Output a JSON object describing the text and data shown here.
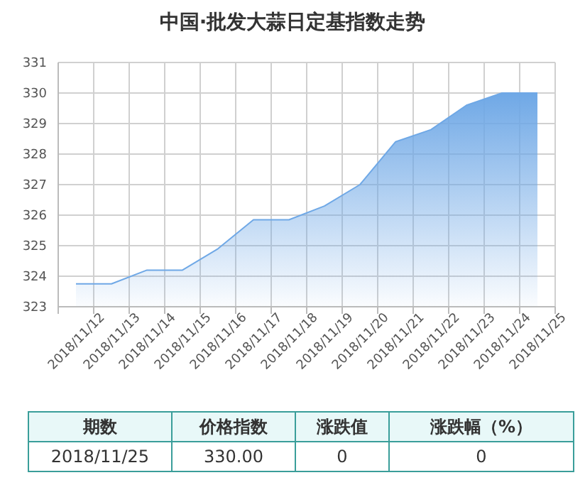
{
  "chart_data": {
    "type": "area",
    "title": "中国·批发大蒜日定基指数走势",
    "categories": [
      "2018/11/12",
      "2018/11/13",
      "2018/11/14",
      "2018/11/15",
      "2018/11/16",
      "2018/11/17",
      "2018/11/18",
      "2018/11/19",
      "2018/11/20",
      "2018/11/21",
      "2018/11/22",
      "2018/11/23",
      "2018/11/24",
      "2018/11/25"
    ],
    "series": [
      {
        "color": "#6fa8e6",
        "values": [
          323.75,
          323.75,
          324.2,
          324.2,
          324.9,
          325.85,
          325.85,
          326.3,
          327.0,
          328.4,
          328.8,
          329.6,
          330.0,
          330.0
        ]
      }
    ],
    "ylim": [
      323,
      331
    ],
    "yticks": [
      323,
      324,
      325,
      326,
      327,
      328,
      329,
      330,
      331
    ],
    "grid": true,
    "annotations": [
      "期数",
      "价格指数",
      "涨跌值",
      "涨跌幅（%）",
      "2018/11/25",
      "330.00",
      "0",
      "0"
    ]
  }
}
